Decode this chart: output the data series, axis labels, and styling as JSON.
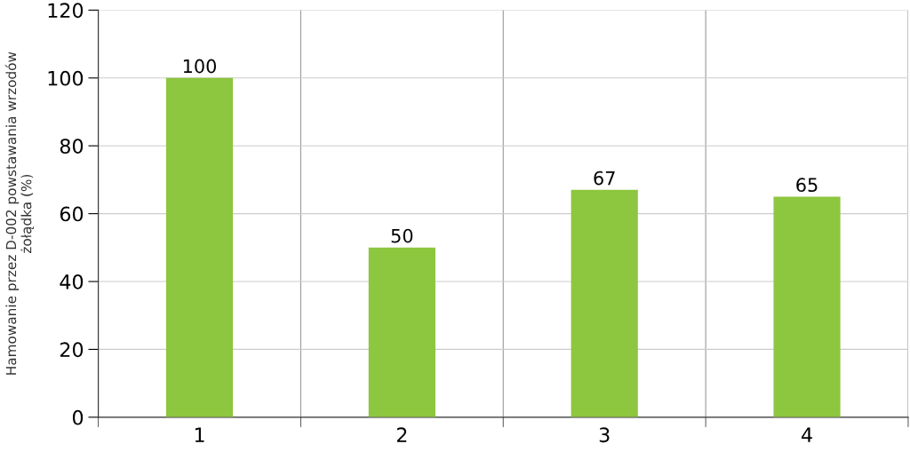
{
  "chart_data": {
    "type": "bar",
    "ylabel": "Hamowanie przez D-002 powstawania wrzodów\nżołądka (%)",
    "categories": [
      "1",
      "2",
      "3",
      "4"
    ],
    "values": [
      100,
      50,
      67,
      65
    ],
    "color": "#8dc63f",
    "ylim": [
      0,
      120
    ],
    "yticks": [
      0,
      20,
      40,
      60,
      80,
      100,
      120
    ],
    "grid": true,
    "data_labels": true
  }
}
